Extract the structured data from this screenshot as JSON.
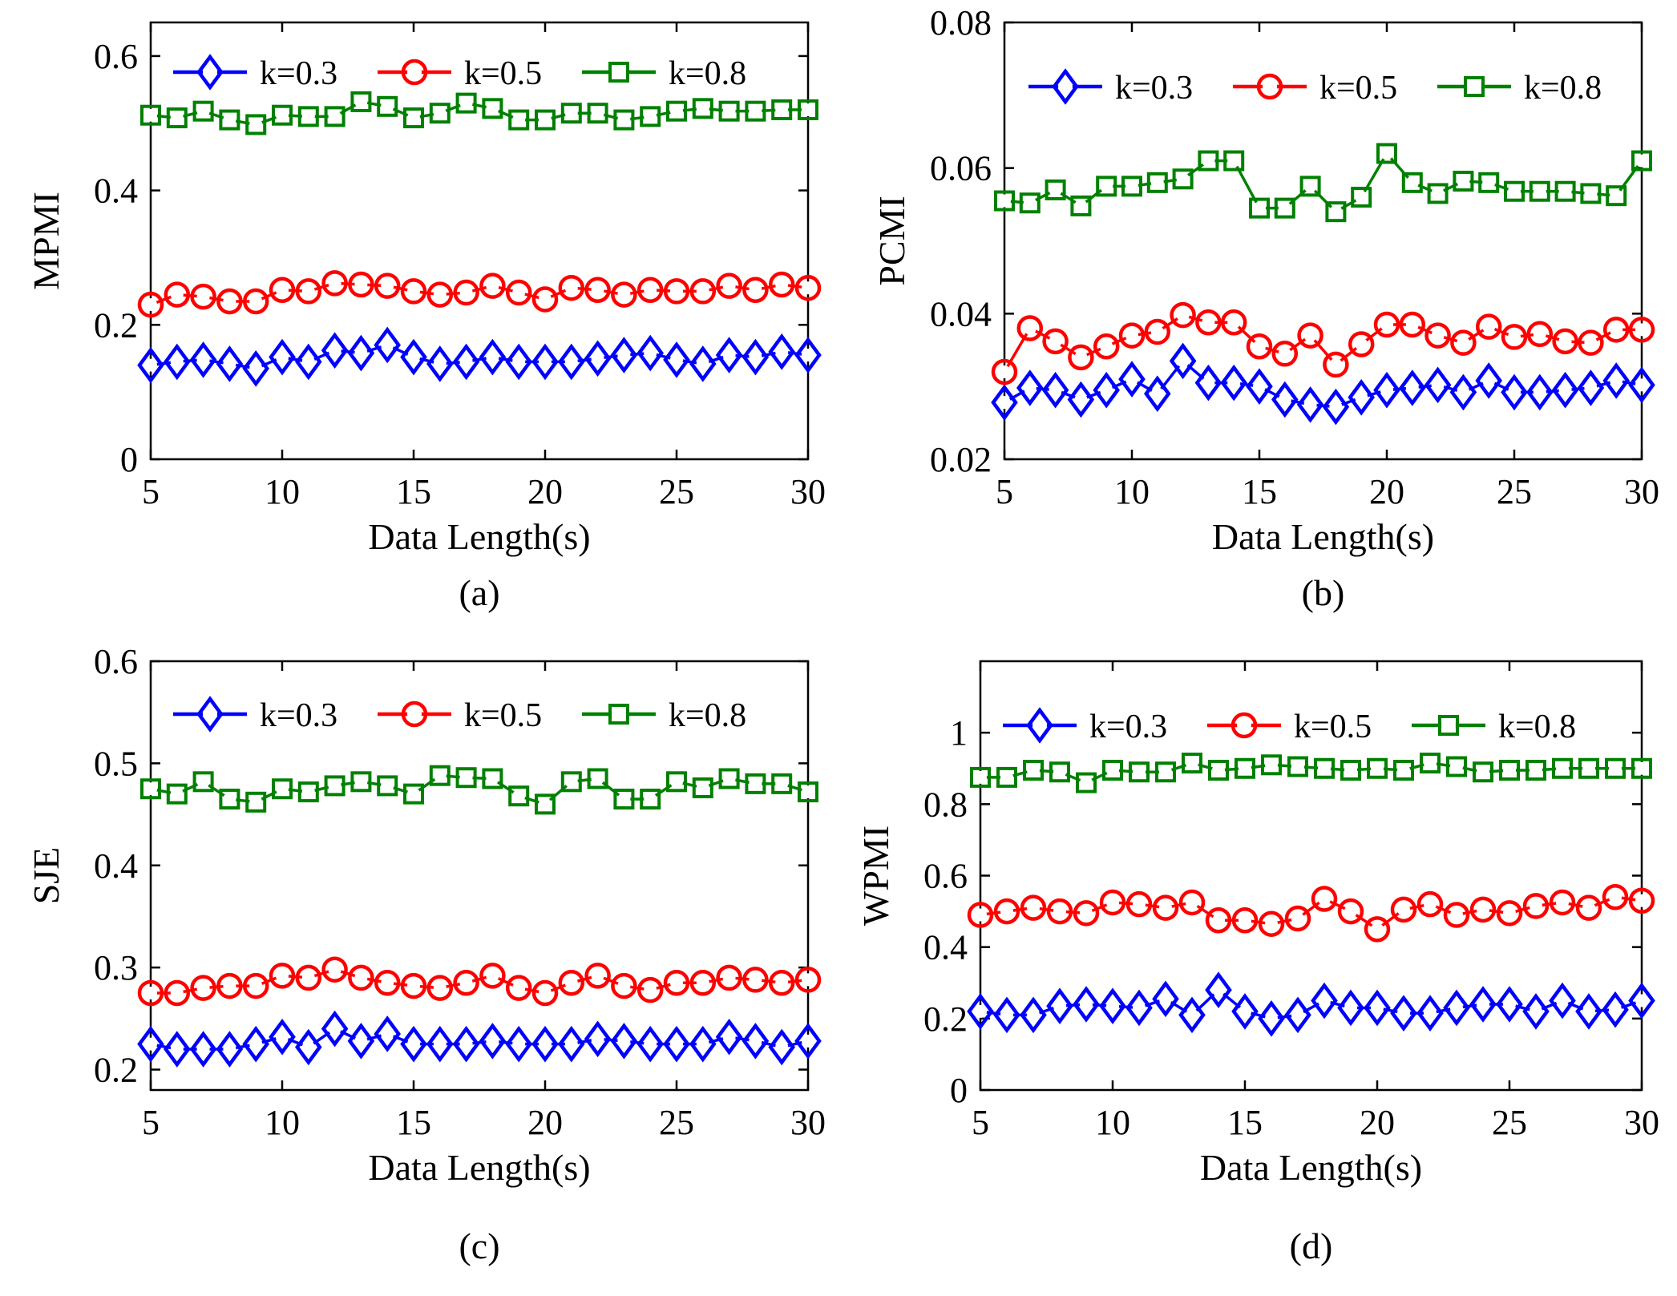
{
  "chart_data": [
    {
      "type": "line",
      "panel_label": "(a)",
      "xlabel": "Data Length(s)",
      "ylabel": "MPMI",
      "xlim": [
        5,
        30
      ],
      "ylim": [
        0,
        0.65
      ],
      "xticks": [
        5,
        10,
        15,
        20,
        25,
        30
      ],
      "yticks": [
        0,
        0.2,
        0.4,
        0.6
      ],
      "ytick_labels": [
        "0",
        "0.2",
        "0.4",
        "0.6"
      ],
      "grid": false,
      "legend_position": "top",
      "x": [
        5,
        6,
        7,
        8,
        9,
        10,
        11,
        12,
        13,
        14,
        15,
        16,
        17,
        18,
        19,
        20,
        21,
        22,
        23,
        24,
        25,
        26,
        27,
        28,
        29,
        30
      ],
      "series": [
        {
          "name": "k=0.3",
          "color": "#0000ff",
          "marker": "diamond",
          "values": [
            0.14,
            0.145,
            0.148,
            0.142,
            0.135,
            0.152,
            0.145,
            0.162,
            0.158,
            0.17,
            0.152,
            0.142,
            0.145,
            0.152,
            0.145,
            0.145,
            0.145,
            0.15,
            0.155,
            0.158,
            0.148,
            0.142,
            0.155,
            0.152,
            0.16,
            0.155
          ]
        },
        {
          "name": "k=0.5",
          "color": "#ff0000",
          "marker": "circle",
          "values": [
            0.23,
            0.245,
            0.242,
            0.235,
            0.235,
            0.252,
            0.25,
            0.262,
            0.26,
            0.258,
            0.25,
            0.245,
            0.248,
            0.258,
            0.248,
            0.238,
            0.255,
            0.252,
            0.245,
            0.252,
            0.25,
            0.25,
            0.258,
            0.252,
            0.26,
            0.255
          ]
        },
        {
          "name": "k=0.8",
          "color": "#008000",
          "marker": "square",
          "values": [
            0.512,
            0.508,
            0.518,
            0.505,
            0.498,
            0.512,
            0.51,
            0.51,
            0.532,
            0.525,
            0.508,
            0.515,
            0.53,
            0.522,
            0.505,
            0.505,
            0.515,
            0.515,
            0.505,
            0.51,
            0.518,
            0.522,
            0.518,
            0.518,
            0.52,
            0.52
          ]
        }
      ]
    },
    {
      "type": "line",
      "panel_label": "(b)",
      "xlabel": "Data Length(s)",
      "ylabel": "PCMI",
      "xlim": [
        5,
        30
      ],
      "ylim": [
        0.02,
        0.08
      ],
      "xticks": [
        5,
        10,
        15,
        20,
        25,
        30
      ],
      "yticks": [
        0.02,
        0.04,
        0.06,
        0.08
      ],
      "ytick_labels": [
        "0.02",
        "0.04",
        "0.06",
        "0.08"
      ],
      "grid": false,
      "legend_position": "top",
      "x": [
        5,
        6,
        7,
        8,
        9,
        10,
        11,
        12,
        13,
        14,
        15,
        16,
        17,
        18,
        19,
        20,
        21,
        22,
        23,
        24,
        25,
        26,
        27,
        28,
        29,
        30
      ],
      "series": [
        {
          "name": "k=0.3",
          "color": "#0000ff",
          "marker": "diamond",
          "values": [
            0.0278,
            0.0298,
            0.0295,
            0.0282,
            0.0295,
            0.031,
            0.029,
            0.0335,
            0.0305,
            0.0305,
            0.03,
            0.0282,
            0.0275,
            0.0272,
            0.0285,
            0.0295,
            0.0298,
            0.0302,
            0.0292,
            0.0308,
            0.0292,
            0.0292,
            0.0295,
            0.0298,
            0.0308,
            0.0302
          ]
        },
        {
          "name": "k=0.5",
          "color": "#ff0000",
          "marker": "circle",
          "values": [
            0.032,
            0.038,
            0.0362,
            0.034,
            0.0355,
            0.037,
            0.0375,
            0.0398,
            0.0388,
            0.0388,
            0.0355,
            0.0345,
            0.037,
            0.033,
            0.0358,
            0.0385,
            0.0385,
            0.037,
            0.036,
            0.0382,
            0.0368,
            0.0372,
            0.0362,
            0.036,
            0.0378,
            0.0378
          ]
        },
        {
          "name": "k=0.8",
          "color": "#008000",
          "marker": "square",
          "values": [
            0.0555,
            0.0552,
            0.057,
            0.0548,
            0.0575,
            0.0575,
            0.058,
            0.0585,
            0.061,
            0.061,
            0.0545,
            0.0545,
            0.0575,
            0.054,
            0.056,
            0.062,
            0.058,
            0.0565,
            0.0582,
            0.058,
            0.0568,
            0.0568,
            0.0568,
            0.0565,
            0.0562,
            0.061
          ]
        }
      ]
    },
    {
      "type": "line",
      "panel_label": "(c)",
      "xlabel": "Data Length(s)",
      "ylabel": "SJE",
      "xlim": [
        5,
        30
      ],
      "ylim": [
        0.18,
        0.6
      ],
      "xticks": [
        5,
        10,
        15,
        20,
        25,
        30
      ],
      "yticks": [
        0.2,
        0.3,
        0.4,
        0.5,
        0.6
      ],
      "ytick_labels": [
        "0.2",
        "0.3",
        "0.4",
        "0.5",
        "0.6"
      ],
      "grid": false,
      "legend_position": "top",
      "x": [
        5,
        6,
        7,
        8,
        9,
        10,
        11,
        12,
        13,
        14,
        15,
        16,
        17,
        18,
        19,
        20,
        21,
        22,
        23,
        24,
        25,
        26,
        27,
        28,
        29,
        30
      ],
      "series": [
        {
          "name": "k=0.3",
          "color": "#0000ff",
          "marker": "diamond",
          "values": [
            0.225,
            0.22,
            0.22,
            0.22,
            0.225,
            0.232,
            0.222,
            0.24,
            0.228,
            0.235,
            0.225,
            0.225,
            0.225,
            0.228,
            0.225,
            0.225,
            0.225,
            0.23,
            0.228,
            0.225,
            0.225,
            0.225,
            0.232,
            0.228,
            0.222,
            0.228
          ]
        },
        {
          "name": "k=0.5",
          "color": "#ff0000",
          "marker": "circle",
          "values": [
            0.275,
            0.275,
            0.28,
            0.282,
            0.282,
            0.292,
            0.29,
            0.298,
            0.29,
            0.285,
            0.282,
            0.28,
            0.285,
            0.292,
            0.28,
            0.275,
            0.285,
            0.292,
            0.282,
            0.278,
            0.285,
            0.285,
            0.29,
            0.288,
            0.285,
            0.288
          ]
        },
        {
          "name": "k=0.8",
          "color": "#008000",
          "marker": "square",
          "values": [
            0.475,
            0.47,
            0.482,
            0.465,
            0.462,
            0.475,
            0.472,
            0.478,
            0.482,
            0.478,
            0.47,
            0.488,
            0.486,
            0.485,
            0.468,
            0.46,
            0.482,
            0.485,
            0.465,
            0.465,
            0.482,
            0.476,
            0.485,
            0.48,
            0.48,
            0.472
          ]
        }
      ]
    },
    {
      "type": "line",
      "panel_label": "(d)",
      "xlabel": "Data Length(s)",
      "ylabel": "WPMI",
      "xlim": [
        5,
        30
      ],
      "ylim": [
        0,
        1.2
      ],
      "xticks": [
        5,
        10,
        15,
        20,
        25,
        30
      ],
      "yticks": [
        0,
        0.2,
        0.4,
        0.6,
        0.8,
        1
      ],
      "ytick_labels": [
        "0",
        "0.2",
        "0.4",
        "0.6",
        "0.8",
        "1"
      ],
      "grid": false,
      "legend_position": "top",
      "x": [
        5,
        6,
        7,
        8,
        9,
        10,
        11,
        12,
        13,
        14,
        15,
        16,
        17,
        18,
        19,
        20,
        21,
        22,
        23,
        24,
        25,
        26,
        27,
        28,
        29,
        30
      ],
      "series": [
        {
          "name": "k=0.3",
          "color": "#0000ff",
          "marker": "diamond",
          "values": [
            0.22,
            0.21,
            0.21,
            0.235,
            0.24,
            0.235,
            0.23,
            0.255,
            0.21,
            0.28,
            0.22,
            0.2,
            0.21,
            0.25,
            0.23,
            0.23,
            0.215,
            0.215,
            0.23,
            0.24,
            0.24,
            0.22,
            0.25,
            0.22,
            0.225,
            0.25
          ]
        },
        {
          "name": "k=0.5",
          "color": "#ff0000",
          "marker": "circle",
          "values": [
            0.49,
            0.5,
            0.51,
            0.5,
            0.495,
            0.525,
            0.52,
            0.51,
            0.525,
            0.475,
            0.475,
            0.465,
            0.48,
            0.535,
            0.5,
            0.45,
            0.505,
            0.52,
            0.49,
            0.505,
            0.495,
            0.515,
            0.525,
            0.51,
            0.54,
            0.53
          ]
        },
        {
          "name": "k=0.8",
          "color": "#008000",
          "marker": "square",
          "values": [
            0.875,
            0.875,
            0.895,
            0.89,
            0.86,
            0.895,
            0.89,
            0.89,
            0.915,
            0.895,
            0.9,
            0.91,
            0.905,
            0.9,
            0.895,
            0.9,
            0.895,
            0.915,
            0.905,
            0.89,
            0.895,
            0.895,
            0.9,
            0.9,
            0.9,
            0.9
          ]
        }
      ]
    }
  ]
}
